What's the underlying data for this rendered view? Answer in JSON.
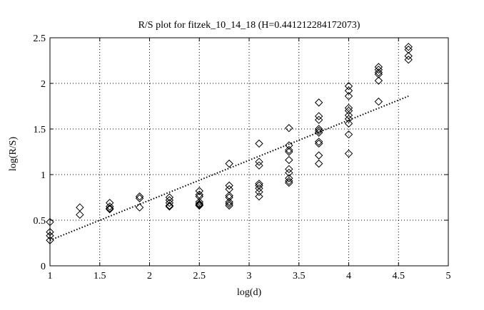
{
  "chart_data": {
    "type": "scatter",
    "title": "R/S plot for fitzek_10_14_18 (H=0.441212284172073)",
    "xlabel": "log(d)",
    "ylabel": "log(R/S)",
    "xlim": [
      1,
      5
    ],
    "ylim": [
      0,
      2.5
    ],
    "grid": true,
    "legend": "none",
    "x_ticks": [
      1,
      1.5,
      2,
      2.5,
      3,
      3.5,
      4,
      4.5,
      5
    ],
    "x_tick_labels": [
      "1",
      "1.5",
      "2",
      "2.5",
      "3",
      "3.5",
      "4",
      "4.5",
      "5"
    ],
    "y_ticks": [
      0,
      0.5,
      1,
      1.5,
      2,
      2.5
    ],
    "y_tick_labels": [
      "0",
      "0.5",
      "1",
      "1.5",
      "2",
      "2.5"
    ],
    "series": [
      {
        "marker": "diamond",
        "color": "#000000",
        "points": [
          [
            1.0,
            0.48
          ],
          [
            1.0,
            0.37
          ],
          [
            1.0,
            0.33
          ],
          [
            1.0,
            0.28
          ],
          [
            1.3,
            0.64
          ],
          [
            1.3,
            0.56
          ],
          [
            1.6,
            0.69
          ],
          [
            1.6,
            0.65
          ],
          [
            1.6,
            0.63
          ],
          [
            1.6,
            0.62
          ],
          [
            1.9,
            0.76
          ],
          [
            1.9,
            0.74
          ],
          [
            1.9,
            0.64
          ],
          [
            2.2,
            0.75
          ],
          [
            2.2,
            0.72
          ],
          [
            2.2,
            0.69
          ],
          [
            2.2,
            0.66
          ],
          [
            2.2,
            0.65
          ],
          [
            2.5,
            0.82
          ],
          [
            2.5,
            0.78
          ],
          [
            2.5,
            0.76
          ],
          [
            2.5,
            0.7
          ],
          [
            2.5,
            0.68
          ],
          [
            2.5,
            0.67
          ],
          [
            2.5,
            0.66
          ],
          [
            2.8,
            1.12
          ],
          [
            2.8,
            0.88
          ],
          [
            2.8,
            0.84
          ],
          [
            2.8,
            0.77
          ],
          [
            2.8,
            0.75
          ],
          [
            2.8,
            0.7
          ],
          [
            2.8,
            0.68
          ],
          [
            2.8,
            0.66
          ],
          [
            3.1,
            1.34
          ],
          [
            3.1,
            1.14
          ],
          [
            3.1,
            1.1
          ],
          [
            3.1,
            0.9
          ],
          [
            3.1,
            0.88
          ],
          [
            3.1,
            0.85
          ],
          [
            3.1,
            0.81
          ],
          [
            3.1,
            0.76
          ],
          [
            3.4,
            1.51
          ],
          [
            3.4,
            1.32
          ],
          [
            3.4,
            1.27
          ],
          [
            3.4,
            1.25
          ],
          [
            3.4,
            1.16
          ],
          [
            3.4,
            1.06
          ],
          [
            3.4,
            1.02
          ],
          [
            3.4,
            0.96
          ],
          [
            3.4,
            0.93
          ],
          [
            3.4,
            0.91
          ],
          [
            3.7,
            1.79
          ],
          [
            3.7,
            1.64
          ],
          [
            3.7,
            1.6
          ],
          [
            3.7,
            1.5
          ],
          [
            3.7,
            1.48
          ],
          [
            3.7,
            1.46
          ],
          [
            3.7,
            1.36
          ],
          [
            3.7,
            1.34
          ],
          [
            3.7,
            1.21
          ],
          [
            3.7,
            1.12
          ],
          [
            4.0,
            1.97
          ],
          [
            4.0,
            1.92
          ],
          [
            4.0,
            1.86
          ],
          [
            4.0,
            1.73
          ],
          [
            4.0,
            1.7
          ],
          [
            4.0,
            1.65
          ],
          [
            4.0,
            1.61
          ],
          [
            4.0,
            1.56
          ],
          [
            4.0,
            1.44
          ],
          [
            4.0,
            1.23
          ],
          [
            4.3,
            2.18
          ],
          [
            4.3,
            2.15
          ],
          [
            4.3,
            2.12
          ],
          [
            4.3,
            2.1
          ],
          [
            4.3,
            2.03
          ],
          [
            4.3,
            1.8
          ],
          [
            4.6,
            2.4
          ],
          [
            4.6,
            2.37
          ],
          [
            4.6,
            2.3
          ],
          [
            4.6,
            2.26
          ]
        ]
      }
    ],
    "fit_line": {
      "style": "dotted",
      "x": [
        1.0,
        4.6
      ],
      "y": [
        0.28,
        1.86
      ]
    }
  }
}
